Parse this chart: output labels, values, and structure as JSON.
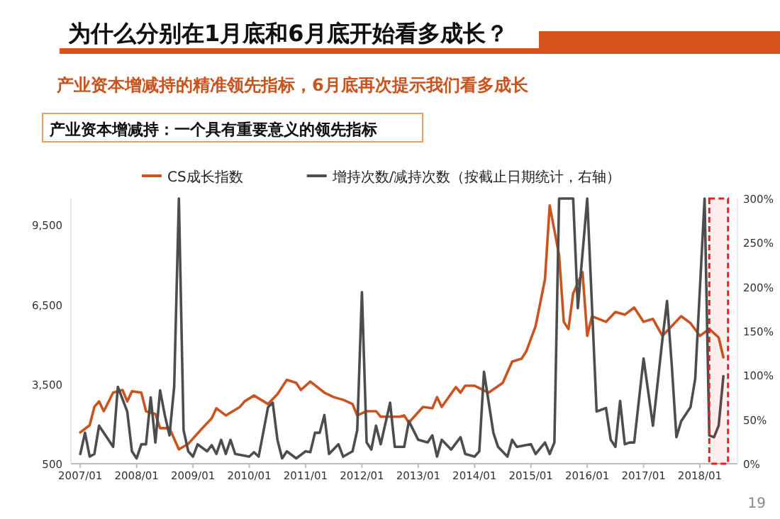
{
  "chart_data": {
    "type": "line",
    "title": "为什么分别在1月底和6月底开始看多成长？",
    "subtitle": "产业资本增减持的精准领先指标，6月底再次提示我们看多成长",
    "annotations": [
      "产业资本增减持：一个具有重要意义的领先指标",
      "19"
    ],
    "legend": "top",
    "xlim": [
      "2006-11",
      "2018-09"
    ],
    "xticks": [
      {
        "value": "2007-01",
        "label": "2007/01"
      },
      {
        "value": "2008-01",
        "label": "2008/01"
      },
      {
        "value": "2009-01",
        "label": "2009/01"
      },
      {
        "value": "2010-01",
        "label": "2010/01"
      },
      {
        "value": "2011-01",
        "label": "2011/01"
      },
      {
        "value": "2012-01",
        "label": "2012/01"
      },
      {
        "value": "2013-01",
        "label": "2013/01"
      },
      {
        "value": "2014-01",
        "label": "2014/01"
      },
      {
        "value": "2015-01",
        "label": "2015/01"
      },
      {
        "value": "2016-01",
        "label": "2016/01"
      },
      {
        "value": "2017-01",
        "label": "2017/01"
      },
      {
        "value": "2018-01",
        "label": "2018/01"
      }
    ],
    "ylim": [
      500,
      10500
    ],
    "yticks": [
      500,
      {
        "value": 3500,
        "label": "3,500"
      },
      {
        "value": 6500,
        "label": "6,500"
      },
      {
        "value": 9500,
        "label": "9,500"
      }
    ],
    "y2lim": [
      0,
      300
    ],
    "y2ticks": [
      {
        "value": 0,
        "label": "0%"
      },
      {
        "value": 50,
        "label": "50%"
      },
      {
        "value": 100,
        "label": "100%"
      },
      {
        "value": 150,
        "label": "150%"
      },
      {
        "value": 200,
        "label": "200%"
      },
      {
        "value": 250,
        "label": "250%"
      },
      {
        "value": 300,
        "label": "300%"
      }
    ],
    "bands": [
      {
        "axis": "x",
        "from": "2018-03",
        "to": "2018-07",
        "color": "#e0202a"
      }
    ],
    "series": [
      {
        "name": "CS成长指数",
        "color": "#c9541f",
        "x": [
          "2007-01",
          "2007-03",
          "2007-04",
          "2007-05",
          "2007-06",
          "2007-08",
          "2007-10",
          "2007-11",
          "2007-12",
          "2008-02",
          "2008-03",
          "2008-05",
          "2008-06",
          "2008-08",
          "2008-10",
          "2008-12",
          "2009-03",
          "2009-05",
          "2009-06",
          "2009-08",
          "2009-11",
          "2009-12",
          "2010-02",
          "2010-05",
          "2010-07",
          "2010-09",
          "2010-11",
          "2010-12",
          "2011-02",
          "2011-05",
          "2011-07",
          "2011-09",
          "2011-11",
          "2011-12",
          "2012-02",
          "2012-04",
          "2012-05",
          "2012-09",
          "2012-10",
          "2012-11",
          "2013-02",
          "2013-04",
          "2013-05",
          "2013-06",
          "2013-09",
          "2013-10",
          "2013-11",
          "2014-01",
          "2014-04",
          "2014-07",
          "2014-09",
          "2014-11",
          "2014-12",
          "2015-02",
          "2015-04",
          "2015-05",
          "2015-07",
          "2015-08",
          "2015-09",
          "2015-10",
          "2015-12",
          "2016-01",
          "2016-02",
          "2016-05",
          "2016-07",
          "2016-09",
          "2016-11",
          "2017-01",
          "2017-03",
          "2017-05",
          "2017-07",
          "2017-09",
          "2017-11",
          "2018-01",
          "2018-03",
          "2018-05",
          "2018-06"
        ],
        "values": [
          1680,
          1950,
          2640,
          2850,
          2480,
          3180,
          3280,
          2850,
          3230,
          3180,
          2480,
          2370,
          1840,
          1840,
          1040,
          1250,
          1840,
          2210,
          2590,
          2320,
          2640,
          2850,
          3070,
          2750,
          3120,
          3660,
          3550,
          3280,
          3600,
          3180,
          3010,
          2910,
          2750,
          2320,
          2480,
          2480,
          2270,
          2270,
          2320,
          2050,
          2640,
          2590,
          3010,
          2640,
          3390,
          3180,
          3440,
          3440,
          3180,
          3550,
          4350,
          4460,
          4730,
          5690,
          7460,
          10240,
          8360,
          5850,
          5580,
          6920,
          7720,
          5320,
          6060,
          5850,
          6220,
          6120,
          6390,
          5850,
          5960,
          5320,
          5690,
          6060,
          5800,
          5320,
          5580,
          5260,
          4510
        ]
      },
      {
        "name": "增持次数/减持次数（按截止日期统计，右轴）",
        "color": "#4d4d4d",
        "axis": "y2",
        "x": [
          "2007-01",
          "2007-02",
          "2007-03",
          "2007-04",
          "2007-05",
          "2007-07",
          "2007-08",
          "2007-09",
          "2007-11",
          "2007-12",
          "2008-01",
          "2008-02",
          "2008-03",
          "2008-04",
          "2008-05",
          "2008-06",
          "2008-07",
          "2008-08",
          "2008-09",
          "2008-10",
          "2008-11",
          "2008-12",
          "2009-01",
          "2009-02",
          "2009-04",
          "2009-05",
          "2009-06",
          "2009-07",
          "2009-08",
          "2009-09",
          "2009-10",
          "2010-01",
          "2010-02",
          "2010-03",
          "2010-05",
          "2010-06",
          "2010-07",
          "2010-08",
          "2010-09",
          "2010-11",
          "2011-01",
          "2011-02",
          "2011-03",
          "2011-04",
          "2011-05",
          "2011-06",
          "2011-08",
          "2011-09",
          "2011-11",
          "2011-12",
          "2012-01",
          "2012-02",
          "2012-03",
          "2012-04",
          "2012-05",
          "2012-07",
          "2012-08",
          "2012-10",
          "2012-11",
          "2013-01",
          "2013-03",
          "2013-04",
          "2013-05",
          "2013-06",
          "2013-08",
          "2013-10",
          "2013-11",
          "2014-01",
          "2014-02",
          "2014-03",
          "2014-05",
          "2014-06",
          "2014-08",
          "2014-09",
          "2014-10",
          "2015-01",
          "2015-02",
          "2015-04",
          "2015-05",
          "2015-06",
          "2015-07",
          "2015-10",
          "2015-11",
          "2016-01",
          "2016-03",
          "2016-05",
          "2016-06",
          "2016-07",
          "2016-08",
          "2016-09",
          "2016-10",
          "2016-11",
          "2017-01",
          "2017-03",
          "2017-05",
          "2017-06",
          "2017-07",
          "2017-08",
          "2017-09",
          "2017-11",
          "2017-12",
          "2018-02",
          "2018-03",
          "2018-04",
          "2018-05",
          "2018-06"
        ],
        "values": [
          11,
          35,
          8,
          11,
          43,
          27,
          19,
          87,
          59,
          14,
          6,
          22,
          22,
          75,
          24,
          83,
          55,
          32,
          87,
          300,
          38,
          14,
          8,
          22,
          14,
          21,
          11,
          27,
          11,
          27,
          11,
          8,
          13,
          8,
          64,
          69,
          27,
          6,
          14,
          6,
          14,
          13,
          35,
          35,
          55,
          11,
          22,
          8,
          14,
          38,
          194,
          24,
          16,
          43,
          22,
          69,
          19,
          19,
          48,
          27,
          24,
          32,
          8,
          27,
          16,
          30,
          11,
          8,
          14,
          104,
          35,
          19,
          8,
          27,
          19,
          22,
          11,
          24,
          11,
          24,
          300,
          300,
          176,
          300,
          59,
          63,
          27,
          19,
          71,
          22,
          24,
          24,
          119,
          43,
          140,
          184,
          112,
          30,
          48,
          64,
          96,
          300,
          32,
          30,
          43,
          99
        ]
      }
    ]
  }
}
